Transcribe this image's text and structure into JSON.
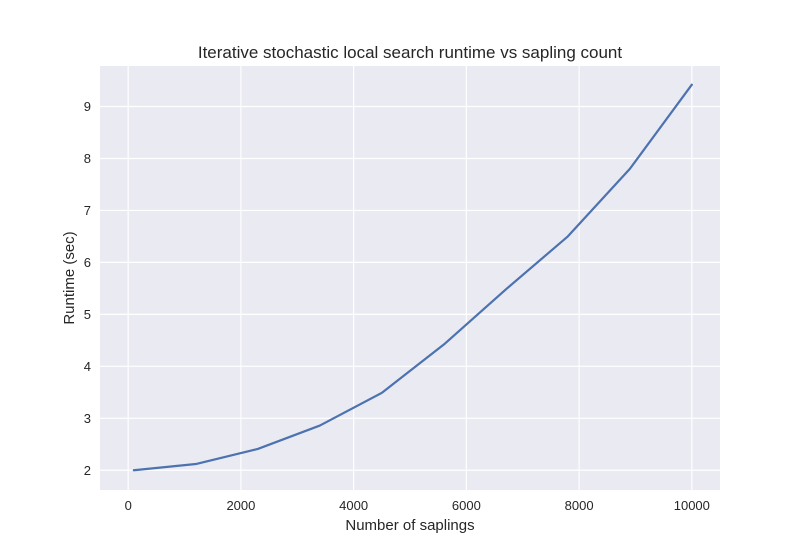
{
  "chart_data": {
    "type": "line",
    "title": "Iterative stochastic local search runtime vs sapling count",
    "xlabel": "Number of saplings",
    "ylabel": "Runtime (sec)",
    "xlim": [
      -500,
      10500
    ],
    "ylim": [
      1.62,
      9.78
    ],
    "xticks": [
      0,
      2000,
      4000,
      6000,
      8000,
      10000
    ],
    "yticks": [
      2,
      3,
      4,
      5,
      6,
      7,
      8,
      9
    ],
    "grid": true,
    "series": [
      {
        "color": "#4c72b0",
        "x": [
          100,
          1200,
          2300,
          3400,
          4500,
          5600,
          6700,
          7800,
          8900,
          10000
        ],
        "y": [
          2.0,
          2.12,
          2.41,
          2.86,
          3.49,
          4.42,
          5.48,
          6.5,
          7.8,
          9.42
        ]
      }
    ],
    "background": "#eaeaf2",
    "grid_color": "#ffffff"
  }
}
